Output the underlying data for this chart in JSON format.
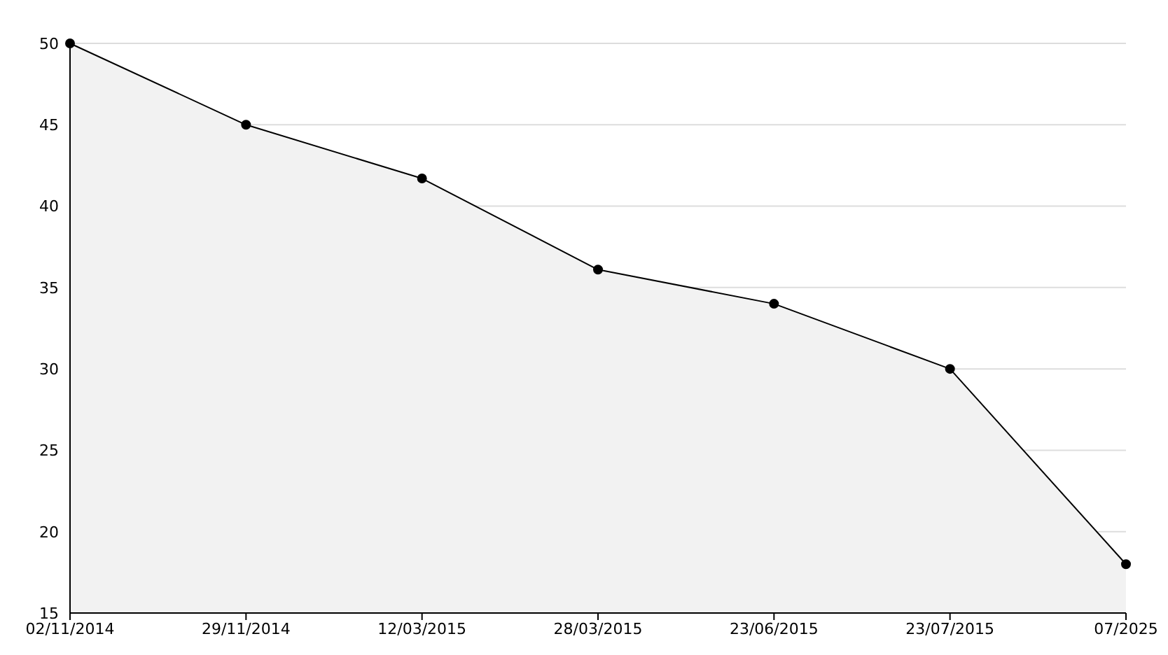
{
  "chart_data": {
    "type": "area",
    "categories": [
      "02/11/2014",
      "29/11/2014",
      "12/03/2015",
      "28/03/2015",
      "23/06/2015",
      "23/07/2015",
      "07/2025"
    ],
    "series": [
      {
        "color": "#000000",
        "values": [
          50,
          45,
          41.7,
          36.1,
          34,
          30,
          18
        ]
      }
    ],
    "ylim": [
      15,
      50
    ],
    "yticks": [
      15,
      20,
      25,
      30,
      35,
      40,
      45,
      50
    ],
    "grid": "y",
    "marker": "circle",
    "line_style": "solid"
  }
}
